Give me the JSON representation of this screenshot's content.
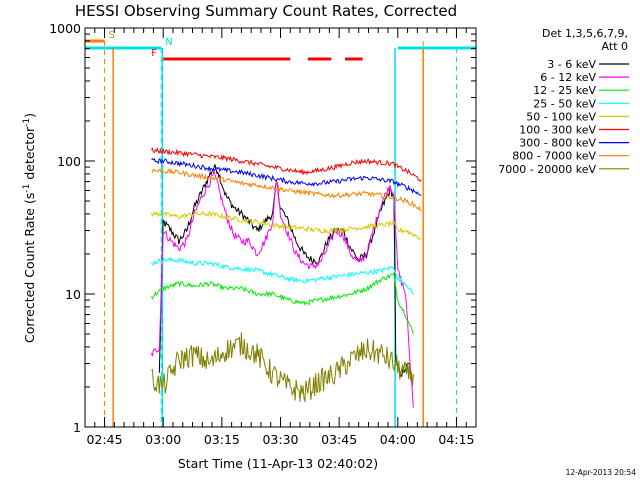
{
  "colors": {
    "s1": "#000000",
    "s2": "#ff00ff",
    "s3": "#00ee00",
    "s4": "#00ffff",
    "s5": "#d8c800",
    "s6": "#ff0000",
    "s7": "#0000ff",
    "s8": "#ff8000",
    "s9": "#808000",
    "flag_S": "#ff8000",
    "flag_N": "#00e0e0",
    "flag_F": "#ff0000"
  },
  "chart_data": {
    "type": "line",
    "title": "HESSI Observing Summary Count Rates, Corrected",
    "xlabel": "Start Time (11-Apr-13 02:40:02)",
    "ylabel_main": "Corrected Count Rate (s",
    "ylabel_sup1": "-1",
    "ylabel_mid": " detector",
    "ylabel_sup2": "-1",
    "ylabel_end": ")",
    "yscale": "log",
    "ylim": [
      1,
      1000
    ],
    "xlim_min": [
      0,
      100
    ],
    "x_ticks": [
      {
        "v": 5,
        "label": "02:45"
      },
      {
        "v": 20,
        "label": "03:00"
      },
      {
        "v": 35,
        "label": "03:15"
      },
      {
        "v": 50,
        "label": "03:30"
      },
      {
        "v": 65,
        "label": "03:45"
      },
      {
        "v": 80,
        "label": "04:00"
      },
      {
        "v": 95,
        "label": "04:15"
      }
    ],
    "y_ticks": [
      {
        "v": 1,
        "label": "1"
      },
      {
        "v": 10,
        "label": "10"
      },
      {
        "v": 100,
        "label": "100"
      },
      {
        "v": 1000,
        "label": "1000"
      }
    ],
    "legend_header": [
      "Det 1,3,5,6,7,9,",
      "Att 0"
    ],
    "legend_position": "right",
    "series": [
      {
        "name": "3 - 6 keV",
        "color_key": "s1",
        "points": [
          [
            19,
            2.5
          ],
          [
            20,
            35
          ],
          [
            22,
            30
          ],
          [
            24,
            25
          ],
          [
            26,
            30
          ],
          [
            28,
            45
          ],
          [
            30,
            60
          ],
          [
            32,
            80
          ],
          [
            33,
            90
          ],
          [
            34,
            85
          ],
          [
            36,
            55
          ],
          [
            38,
            45
          ],
          [
            40,
            40
          ],
          [
            42,
            35
          ],
          [
            44,
            30
          ],
          [
            46,
            35
          ],
          [
            48,
            40
          ],
          [
            49,
            70
          ],
          [
            50,
            45
          ],
          [
            52,
            35
          ],
          [
            54,
            25
          ],
          [
            56,
            20
          ],
          [
            58,
            18
          ],
          [
            60,
            18
          ],
          [
            62,
            25
          ],
          [
            64,
            30
          ],
          [
            66,
            30
          ],
          [
            68,
            22
          ],
          [
            70,
            18
          ],
          [
            72,
            20
          ],
          [
            74,
            30
          ],
          [
            76,
            45
          ],
          [
            78,
            60
          ],
          [
            79,
            55
          ],
          [
            79.5,
            3
          ],
          [
            81,
            2.5
          ],
          [
            83,
            3
          ]
        ]
      },
      {
        "name": "6 - 12 keV",
        "color_key": "s2",
        "points": [
          [
            17,
            3.5
          ],
          [
            19,
            4
          ],
          [
            20,
            30
          ],
          [
            22,
            25
          ],
          [
            24,
            22
          ],
          [
            26,
            25
          ],
          [
            28,
            40
          ],
          [
            30,
            55
          ],
          [
            32,
            70
          ],
          [
            33,
            80
          ],
          [
            34,
            65
          ],
          [
            36,
            40
          ],
          [
            38,
            28
          ],
          [
            40,
            25
          ],
          [
            42,
            25
          ],
          [
            44,
            20
          ],
          [
            46,
            25
          ],
          [
            48,
            35
          ],
          [
            49,
            75
          ],
          [
            50,
            40
          ],
          [
            52,
            28
          ],
          [
            54,
            20
          ],
          [
            56,
            17
          ],
          [
            58,
            16
          ],
          [
            60,
            17
          ],
          [
            62,
            22
          ],
          [
            64,
            30
          ],
          [
            66,
            28
          ],
          [
            68,
            20
          ],
          [
            70,
            17
          ],
          [
            72,
            20
          ],
          [
            74,
            32
          ],
          [
            76,
            50
          ],
          [
            78,
            65
          ],
          [
            79,
            55
          ],
          [
            80,
            15
          ],
          [
            82,
            10
          ],
          [
            83,
            3.5
          ],
          [
            84,
            1.4
          ]
        ]
      },
      {
        "name": "12 - 25 keV",
        "color_key": "s3",
        "points": [
          [
            17,
            9.5
          ],
          [
            20,
            11
          ],
          [
            24,
            12
          ],
          [
            28,
            11.5
          ],
          [
            32,
            12
          ],
          [
            36,
            11
          ],
          [
            40,
            11
          ],
          [
            44,
            10
          ],
          [
            48,
            10
          ],
          [
            52,
            9
          ],
          [
            56,
            8.5
          ],
          [
            60,
            9
          ],
          [
            64,
            9.5
          ],
          [
            68,
            10
          ],
          [
            72,
            11
          ],
          [
            76,
            13
          ],
          [
            79,
            14
          ],
          [
            80,
            9
          ],
          [
            82,
            7
          ],
          [
            84,
            5
          ]
        ]
      },
      {
        "name": "25 - 50 keV",
        "color_key": "s4",
        "points": [
          [
            17,
            17
          ],
          [
            20,
            18
          ],
          [
            24,
            18
          ],
          [
            28,
            17
          ],
          [
            32,
            17
          ],
          [
            36,
            16
          ],
          [
            40,
            15.5
          ],
          [
            44,
            15
          ],
          [
            48,
            14
          ],
          [
            52,
            13
          ],
          [
            56,
            12.5
          ],
          [
            60,
            13
          ],
          [
            64,
            13.5
          ],
          [
            68,
            14
          ],
          [
            72,
            14.5
          ],
          [
            76,
            15
          ],
          [
            79,
            16
          ],
          [
            80,
            13
          ],
          [
            82,
            12
          ],
          [
            84,
            10
          ]
        ]
      },
      {
        "name": "50 - 100 keV",
        "color_key": "s5",
        "points": [
          [
            17,
            40
          ],
          [
            20,
            40
          ],
          [
            24,
            38
          ],
          [
            28,
            40
          ],
          [
            32,
            40
          ],
          [
            36,
            38
          ],
          [
            40,
            36
          ],
          [
            44,
            35
          ],
          [
            48,
            33
          ],
          [
            52,
            32
          ],
          [
            56,
            31
          ],
          [
            60,
            30
          ],
          [
            64,
            30
          ],
          [
            68,
            31
          ],
          [
            72,
            32
          ],
          [
            76,
            33
          ],
          [
            79,
            34
          ],
          [
            80,
            30
          ],
          [
            82,
            30
          ],
          [
            84,
            28
          ],
          [
            86,
            26
          ]
        ]
      },
      {
        "name": "100 - 300 keV",
        "color_key": "s6",
        "points": [
          [
            17,
            120
          ],
          [
            20,
            118
          ],
          [
            24,
            115
          ],
          [
            28,
            112
          ],
          [
            32,
            108
          ],
          [
            36,
            105
          ],
          [
            40,
            100
          ],
          [
            44,
            95
          ],
          [
            48,
            90
          ],
          [
            52,
            86
          ],
          [
            56,
            82
          ],
          [
            60,
            85
          ],
          [
            64,
            90
          ],
          [
            68,
            97
          ],
          [
            72,
            100
          ],
          [
            76,
            97
          ],
          [
            79,
            95
          ],
          [
            80,
            90
          ],
          [
            82,
            85
          ],
          [
            84,
            78
          ],
          [
            86,
            72
          ]
        ]
      },
      {
        "name": "300 - 800 keV",
        "color_key": "s7",
        "points": [
          [
            17,
            100
          ],
          [
            20,
            100
          ],
          [
            24,
            96
          ],
          [
            28,
            92
          ],
          [
            32,
            88
          ],
          [
            36,
            85
          ],
          [
            40,
            82
          ],
          [
            44,
            78
          ],
          [
            48,
            74
          ],
          [
            52,
            70
          ],
          [
            56,
            68
          ],
          [
            60,
            68
          ],
          [
            64,
            70
          ],
          [
            68,
            73
          ],
          [
            72,
            75
          ],
          [
            76,
            72
          ],
          [
            79,
            70
          ],
          [
            80,
            67
          ],
          [
            82,
            64
          ],
          [
            84,
            60
          ],
          [
            86,
            55
          ]
        ]
      },
      {
        "name": "800 - 7000 keV",
        "color_key": "s8",
        "points": [
          [
            17,
            85
          ],
          [
            20,
            84
          ],
          [
            24,
            82
          ],
          [
            28,
            78
          ],
          [
            32,
            75
          ],
          [
            36,
            72
          ],
          [
            40,
            68
          ],
          [
            44,
            66
          ],
          [
            48,
            63
          ],
          [
            52,
            60
          ],
          [
            56,
            58
          ],
          [
            60,
            56
          ],
          [
            64,
            55
          ],
          [
            68,
            56
          ],
          [
            72,
            57
          ],
          [
            76,
            55
          ],
          [
            79,
            53
          ],
          [
            80,
            52
          ],
          [
            82,
            50
          ],
          [
            84,
            47
          ],
          [
            86,
            43
          ]
        ]
      },
      {
        "name": "7000 - 20000 keV",
        "color_key": "s9",
        "points": [
          [
            17,
            2.3
          ],
          [
            20,
            2
          ],
          [
            24,
            3.2
          ],
          [
            28,
            3.5
          ],
          [
            32,
            3
          ],
          [
            36,
            3.8
          ],
          [
            40,
            4.2
          ],
          [
            44,
            3.5
          ],
          [
            48,
            2.5
          ],
          [
            52,
            2
          ],
          [
            56,
            1.8
          ],
          [
            60,
            2.2
          ],
          [
            64,
            2.5
          ],
          [
            68,
            3.2
          ],
          [
            72,
            3.8
          ],
          [
            76,
            3.5
          ],
          [
            79,
            3
          ],
          [
            80,
            2.8
          ],
          [
            82,
            2.5
          ],
          [
            84,
            2.5
          ]
        ]
      }
    ],
    "flags": [
      {
        "label": "S",
        "color_key": "flag_S",
        "segments": [
          [
            -2,
            5
          ]
        ],
        "level": 0,
        "boundaries": [
          5,
          86.5
        ]
      },
      {
        "label": "N",
        "color_key": "flag_N",
        "segments": [
          [
            -2,
            19.5
          ],
          [
            80,
            102
          ]
        ],
        "level": 1,
        "boundaries": [
          19.5,
          95
        ]
      },
      {
        "label": "F",
        "color_key": "flag_F",
        "segments": [
          [
            20,
            52.5
          ],
          [
            57,
            63
          ],
          [
            66.5,
            71
          ]
        ],
        "level": 2,
        "boundaries": []
      }
    ],
    "extra_verticals": [
      {
        "x": 19.8,
        "color_key": "flag_N"
      },
      {
        "x": 79.3,
        "color_key": "flag_N"
      },
      {
        "x": 7.2,
        "color_key": "flag_S"
      },
      {
        "x": 86.5,
        "color_key": "flag_S"
      }
    ]
  },
  "stamp": "12-Apr-2013 20:54"
}
